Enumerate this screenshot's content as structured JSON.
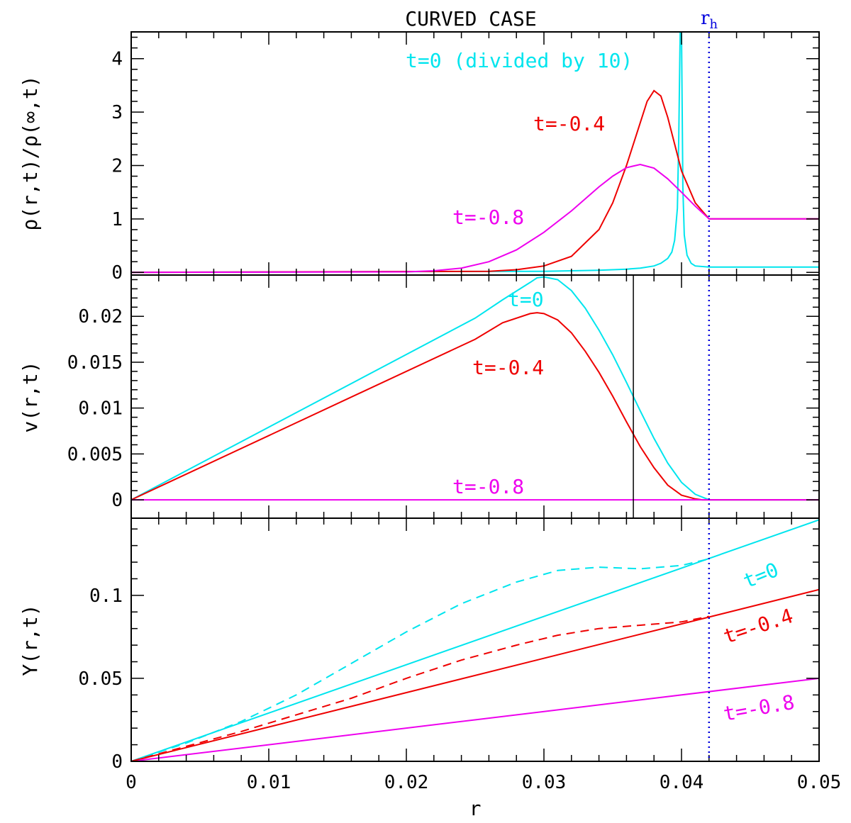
{
  "title": "CURVED CASE",
  "rh_label": {
    "main": "r",
    "sub": "h"
  },
  "rh_value": 0.042,
  "colors": {
    "t0": "#00e5ee",
    "t04": "#ee0000",
    "t08": "#ee00ee",
    "rh": "#0000dd",
    "axis": "#000000"
  },
  "chart_data": [
    {
      "type": "line",
      "panel": "rho",
      "ylabel": "ρ(r,t)/ρ(∞,t)",
      "xlabel": "",
      "xlim": [
        0,
        0.05
      ],
      "ylim": [
        -0.05,
        4.5
      ],
      "yticks": [
        "0",
        "1",
        "2",
        "3",
        "4"
      ],
      "grid": false,
      "annotations": [
        "t=0 (divided by 10)",
        "t=-0.4",
        "t=-0.8"
      ],
      "series": [
        {
          "key": "t0",
          "x": [
            0,
            0.03,
            0.034,
            0.036,
            0.037,
            0.038,
            0.0385,
            0.039,
            0.0393,
            0.0395,
            0.0397,
            0.0398,
            0.0399,
            0.04,
            0.0401,
            0.0402,
            0.0404,
            0.0407,
            0.041,
            0.042,
            0.05
          ],
          "y": [
            0,
            0.02,
            0.04,
            0.06,
            0.08,
            0.12,
            0.17,
            0.26,
            0.38,
            0.6,
            1.2,
            2.5,
            4.5,
            4.5,
            1.6,
            0.7,
            0.32,
            0.17,
            0.12,
            0.1,
            0.1
          ]
        },
        {
          "key": "t04",
          "x": [
            0,
            0.026,
            0.028,
            0.03,
            0.032,
            0.034,
            0.035,
            0.036,
            0.037,
            0.0375,
            0.038,
            0.0385,
            0.039,
            0.0395,
            0.04,
            0.041,
            0.042,
            0.05
          ],
          "y": [
            0,
            0.02,
            0.05,
            0.12,
            0.3,
            0.8,
            1.3,
            2.0,
            2.8,
            3.2,
            3.4,
            3.3,
            2.9,
            2.4,
            1.9,
            1.3,
            1.0,
            1.0
          ]
        },
        {
          "key": "t08",
          "x": [
            0,
            0.02,
            0.022,
            0.024,
            0.026,
            0.028,
            0.03,
            0.032,
            0.034,
            0.035,
            0.036,
            0.037,
            0.038,
            0.039,
            0.04,
            0.041,
            0.042,
            0.05
          ],
          "y": [
            0,
            0.01,
            0.03,
            0.08,
            0.2,
            0.42,
            0.75,
            1.15,
            1.6,
            1.8,
            1.96,
            2.02,
            1.95,
            1.75,
            1.5,
            1.24,
            1.0,
            1.0
          ]
        }
      ]
    },
    {
      "type": "line",
      "panel": "v",
      "ylabel": "v(r,t)",
      "xlabel": "",
      "xlim": [
        0,
        0.05
      ],
      "ylim": [
        -0.002,
        0.0245
      ],
      "yticks": [
        "0",
        "0.005",
        "0.01",
        "0.015",
        "0.02"
      ],
      "grid": false,
      "marker_line_x": 0.0365,
      "annotations": [
        "t=0",
        "t=-0.4",
        "t=-0.8"
      ],
      "series": [
        {
          "key": "t0",
          "x": [
            0,
            0.025,
            0.027,
            0.029,
            0.0295,
            0.03,
            0.031,
            0.032,
            0.033,
            0.034,
            0.035,
            0.036,
            0.037,
            0.038,
            0.039,
            0.04,
            0.041,
            0.042,
            0.05
          ],
          "y": [
            0,
            0.0198,
            0.0218,
            0.0237,
            0.0242,
            0.0243,
            0.024,
            0.0228,
            0.0209,
            0.0185,
            0.0158,
            0.0128,
            0.0097,
            0.0067,
            0.004,
            0.0019,
            0.0006,
            0,
            0
          ]
        },
        {
          "key": "t04",
          "x": [
            0,
            0.025,
            0.027,
            0.029,
            0.0295,
            0.03,
            0.031,
            0.032,
            0.033,
            0.034,
            0.035,
            0.036,
            0.037,
            0.038,
            0.039,
            0.04,
            0.041,
            0.0415,
            0.05
          ],
          "y": [
            0,
            0.0175,
            0.0193,
            0.0203,
            0.0204,
            0.0203,
            0.0196,
            0.0182,
            0.0162,
            0.0139,
            0.0113,
            0.0085,
            0.0058,
            0.0035,
            0.0016,
            0.0005,
            0.0001,
            0,
            0
          ]
        },
        {
          "key": "t08",
          "x": [
            0,
            0.05
          ],
          "y": [
            0,
            0
          ]
        }
      ]
    },
    {
      "type": "line",
      "panel": "Y",
      "ylabel": "Y(r,t)",
      "xlabel": "r",
      "xlim": [
        0,
        0.05
      ],
      "ylim": [
        0,
        0.1465
      ],
      "xticks": [
        "0",
        "0.01",
        "0.02",
        "0.03",
        "0.04",
        "0.05"
      ],
      "yticks": [
        "0",
        "0.05",
        "0.1"
      ],
      "grid": false,
      "annotations": [
        "t=0",
        "t=-0.4",
        "t=-0.8"
      ],
      "series": [
        {
          "key": "t0",
          "style": "solid",
          "x": [
            0,
            0.05
          ],
          "y": [
            0,
            0.1455
          ]
        },
        {
          "key": "t04",
          "style": "solid",
          "x": [
            0,
            0.05
          ],
          "y": [
            0,
            0.1035
          ]
        },
        {
          "key": "t08",
          "style": "solid",
          "x": [
            0,
            0.05
          ],
          "y": [
            0,
            0.05
          ]
        },
        {
          "key": "t0",
          "style": "dashed",
          "x": [
            0,
            0.004,
            0.008,
            0.012,
            0.016,
            0.02,
            0.024,
            0.028,
            0.031,
            0.034,
            0.037,
            0.04,
            0.042
          ],
          "y": [
            0,
            0.011,
            0.024,
            0.04,
            0.059,
            0.078,
            0.095,
            0.108,
            0.115,
            0.117,
            0.116,
            0.118,
            0.122
          ]
        },
        {
          "key": "t04",
          "style": "dashed",
          "x": [
            0,
            0.004,
            0.008,
            0.012,
            0.016,
            0.02,
            0.024,
            0.028,
            0.031,
            0.034,
            0.037,
            0.04,
            0.042
          ],
          "y": [
            0,
            0.009,
            0.018,
            0.028,
            0.038,
            0.05,
            0.061,
            0.07,
            0.076,
            0.08,
            0.082,
            0.084,
            0.0873
          ]
        }
      ]
    }
  ]
}
